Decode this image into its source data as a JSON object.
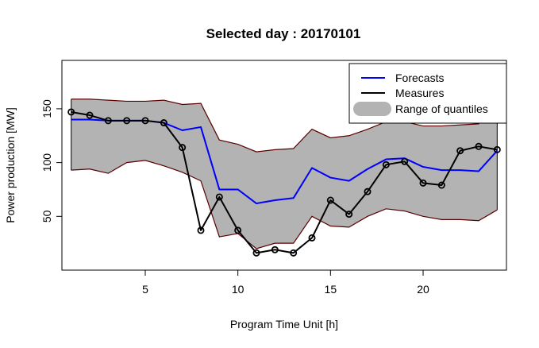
{
  "chart_data": {
    "type": "line",
    "title": "Selected day : 20170101",
    "xlabel": "Program Time Unit [h]",
    "ylabel": "Power production [MW]",
    "xlim": [
      0.5,
      24.5
    ],
    "ylim": [
      0,
      195
    ],
    "x_ticks": [
      5,
      10,
      15,
      20
    ],
    "y_ticks": [
      50,
      100,
      150
    ],
    "grid": false,
    "legend_position": "top-right",
    "x": [
      1,
      2,
      3,
      4,
      5,
      6,
      7,
      8,
      9,
      10,
      11,
      12,
      13,
      14,
      15,
      16,
      17,
      18,
      19,
      20,
      21,
      22,
      23,
      24
    ],
    "series": [
      {
        "name": "Forecasts",
        "kind": "line",
        "color": "#0000ff",
        "values": [
          140,
          140,
          139,
          139,
          139,
          137,
          130,
          133,
          75,
          75,
          62,
          65,
          67,
          95,
          86,
          83,
          94,
          103,
          104,
          96,
          93,
          93,
          92,
          111
        ]
      },
      {
        "name": "Measures",
        "kind": "line-points",
        "color": "#000000",
        "values": [
          147,
          144,
          139,
          139,
          139,
          137,
          114,
          37,
          68,
          37,
          16,
          19,
          16,
          30,
          65,
          52,
          73,
          98,
          101,
          81,
          79,
          111,
          115,
          112
        ]
      },
      {
        "name": "Range of quantiles",
        "kind": "band",
        "fill": "#b3b3b3",
        "edge_color": "#5a0000",
        "upper": [
          159,
          159,
          158,
          157,
          157,
          158,
          154,
          155,
          121,
          117,
          110,
          112,
          113,
          131,
          123,
          125,
          131,
          138,
          138,
          134,
          134,
          135,
          136,
          158
        ],
        "lower": [
          93,
          94,
          90,
          100,
          102,
          97,
          91,
          83,
          31,
          34,
          20,
          25,
          25,
          50,
          41,
          40,
          50,
          57,
          55,
          50,
          47,
          47,
          46,
          56
        ]
      }
    ]
  }
}
